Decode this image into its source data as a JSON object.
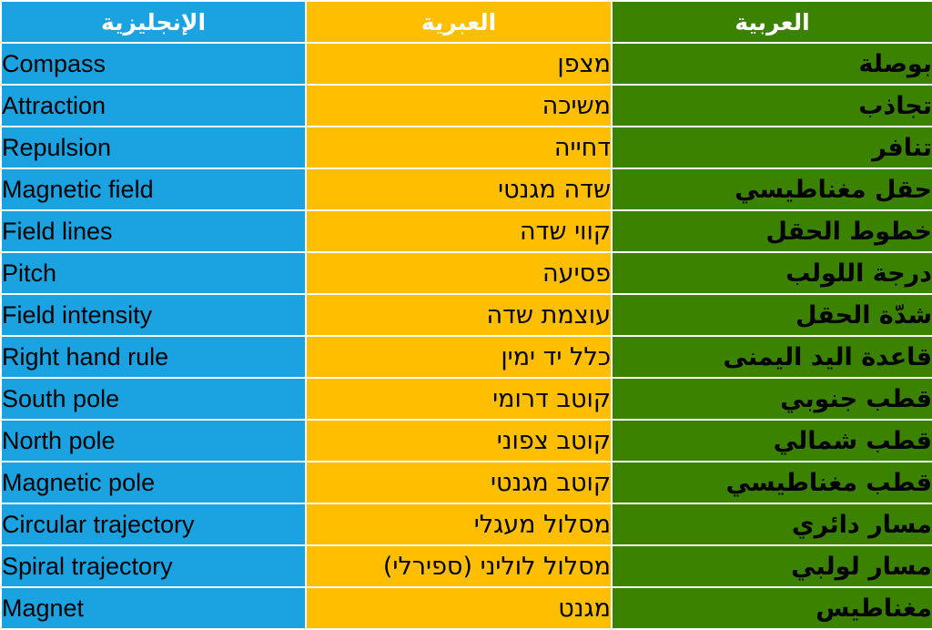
{
  "headers": {
    "english_col": "الإنجليزية",
    "hebrew_col": "العبرية",
    "arabic_col": "العربية"
  },
  "colors": {
    "english_bg": "#1aa3e0",
    "hebrew_bg": "#ffbf00",
    "arabic_bg": "#3b8200",
    "border": "#ffffff"
  },
  "rows": [
    {
      "en": "Compass",
      "he": "מצפן",
      "ar": "بوصلة"
    },
    {
      "en": "Attraction",
      "he": "משיכה",
      "ar": "تجاذب"
    },
    {
      "en": "Repulsion",
      "he": "דחייה",
      "ar": "تنافر"
    },
    {
      "en": "Magnetic field",
      "he": "שדה מגנטי",
      "ar": "حقل مغناطيسي"
    },
    {
      "en": "Field lines",
      "he": "קווי שדה",
      "ar": "خطوط الحقل"
    },
    {
      "en": "Pitch",
      "he": "פסיעה",
      "ar": "درجة اللولب"
    },
    {
      "en": "Field intensity",
      "he": "עוצמת שדה",
      "ar": "شدّة الحقل"
    },
    {
      "en": "Right hand rule",
      "he": "כלל יד ימין",
      "ar": "قاعدة اليد اليمنى"
    },
    {
      "en": "South pole",
      "he": "קוטב דרומי",
      "ar": "قطب جنوبي"
    },
    {
      "en": "North pole",
      "he": "קוטב צפוני",
      "ar": "قطب شمالي"
    },
    {
      "en": "Magnetic pole",
      "he": "קוטב מגנטי",
      "ar": "قطب مغناطيسي"
    },
    {
      "en": "Circular trajectory",
      "he": "מסלול מעגלי",
      "ar": "مسار دائري"
    },
    {
      "en": "Spiral trajectory",
      "he": "מסלול לוליני (ספירלי)",
      "ar": "مسار لولبي"
    },
    {
      "en": "Magnet",
      "he": "מגנט",
      "ar": "مغناطيس"
    }
  ]
}
